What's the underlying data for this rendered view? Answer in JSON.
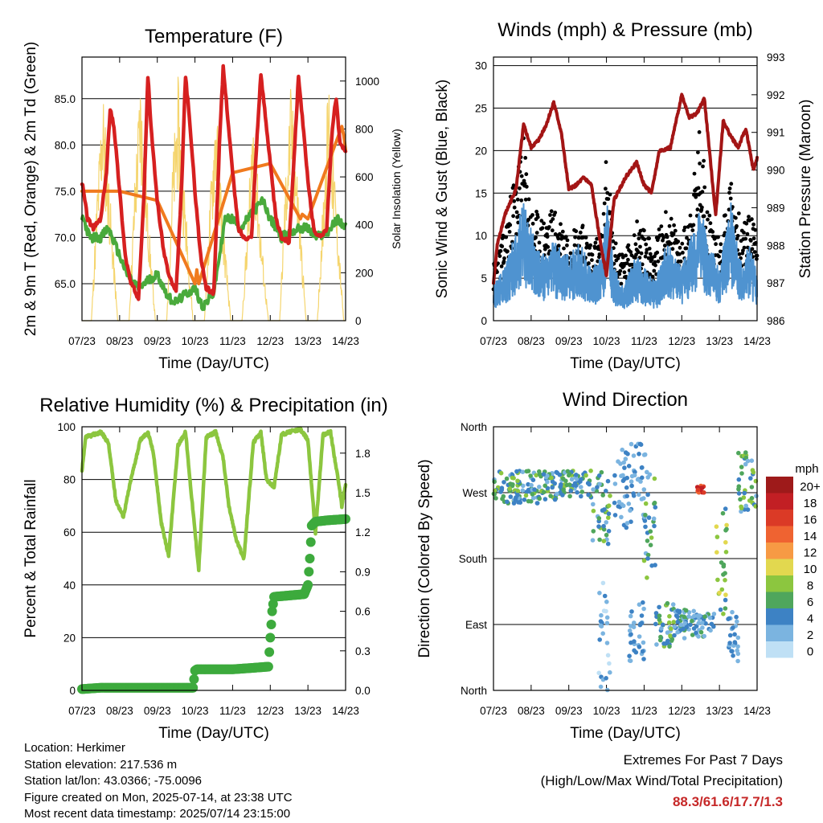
{
  "chart_data": [
    {
      "type": "line",
      "title": "Temperature (F)",
      "xlabel": "Time (Day/UTC)",
      "ylabel": "2m & 9m T (Red, Orange) & 2m Td (Green)",
      "ylabel_right": "Solar Insolation (Yellow)",
      "x_ticks": [
        "07/23",
        "08/23",
        "09/23",
        "10/23",
        "11/23",
        "12/23",
        "13/23",
        "14/23"
      ],
      "ylim": [
        61,
        89.5
      ],
      "y_ticks": [
        "65.0",
        "70.0",
        "75.0",
        "80.0",
        "85.0"
      ],
      "y_tick_values": [
        65,
        70,
        75,
        80,
        85
      ],
      "y2lim": [
        0,
        1100
      ],
      "y2_ticks": [
        "0",
        "200",
        "400",
        "600",
        "800",
        "1000"
      ],
      "y2_tick_values": [
        0,
        200,
        400,
        600,
        800,
        1000
      ],
      "series": [
        {
          "name": "2m T",
          "color": "#d62020",
          "x": [
            0,
            0.15,
            0.3,
            0.5,
            0.65,
            0.75,
            0.85,
            1.0,
            1.15,
            1.3,
            1.5,
            1.65,
            1.75,
            1.85,
            2.0,
            2.15,
            2.3,
            2.5,
            2.65,
            2.75,
            2.85,
            3.0,
            3.15,
            3.3,
            3.5,
            3.65,
            3.75,
            3.85,
            4.0,
            4.15,
            4.3,
            4.5,
            4.65,
            4.75,
            4.85,
            5.0,
            5.15,
            5.3,
            5.5,
            5.65,
            5.75,
            5.85,
            6.0,
            6.15,
            6.3,
            6.5,
            6.65,
            6.75,
            6.85,
            7.0
          ],
          "y": [
            76,
            72,
            71,
            72,
            77,
            84,
            82,
            75,
            68,
            65,
            63.5,
            75,
            87.5,
            81,
            74,
            69,
            66,
            64,
            76,
            87.5,
            83,
            75,
            68,
            64.5,
            64,
            80,
            88.3,
            84,
            77,
            71,
            70,
            70,
            81,
            87.5,
            84,
            78,
            72,
            70,
            69.5,
            80,
            87.5,
            83,
            76,
            71,
            70,
            71,
            82,
            85,
            80,
            79.5
          ]
        },
        {
          "name": "9m T",
          "color": "#f07a1e",
          "x": [
            0,
            1,
            2,
            3,
            3.05,
            3.1,
            4,
            5,
            5.8,
            5.85,
            6,
            6.9,
            6.95,
            7
          ],
          "y": [
            75,
            75,
            74,
            65,
            66.5,
            65,
            77,
            78,
            72,
            72.5,
            72,
            82,
            81,
            79.5
          ]
        },
        {
          "name": "2m Td",
          "color": "#4aaa3c",
          "x": [
            0,
            0.2,
            0.5,
            0.7,
            1.0,
            1.2,
            1.5,
            1.8,
            2.0,
            2.3,
            2.5,
            2.8,
            3.0,
            3.2,
            3.5,
            3.8,
            4.0,
            4.2,
            4.5,
            4.8,
            5.0,
            5.3,
            5.5,
            5.8,
            6.0,
            6.2,
            6.5,
            6.8,
            7.0
          ],
          "y": [
            72.5,
            70,
            70,
            71,
            68,
            66,
            64.5,
            65.5,
            66,
            63.5,
            63,
            64,
            64.5,
            62.5,
            64,
            72,
            72,
            71,
            72.5,
            74,
            72,
            70,
            70.5,
            71,
            71,
            70,
            70.5,
            72,
            71
          ]
        },
        {
          "name": "Solar Insolation",
          "color": "#f5d56e",
          "x": [
            0,
            0.25,
            0.4,
            0.55,
            0.75,
            0.95,
            1.25,
            1.4,
            1.55,
            1.75,
            1.95,
            2.25,
            2.4,
            2.55,
            2.75,
            2.95,
            3.25,
            3.4,
            3.55,
            3.75,
            3.95,
            4.25,
            4.4,
            4.55,
            4.75,
            4.95,
            5.25,
            5.4,
            5.55,
            5.75,
            5.95,
            6.25,
            6.4,
            6.55,
            6.75,
            6.95,
            7.0
          ],
          "y": [
            0,
            0,
            550,
            1000,
            520,
            0,
            0,
            600,
            1050,
            480,
            0,
            0,
            650,
            1020,
            500,
            0,
            0,
            520,
            960,
            430,
            0,
            0,
            450,
            900,
            380,
            0,
            0,
            600,
            1000,
            550,
            0,
            0,
            520,
            1050,
            520,
            0,
            0
          ]
        }
      ]
    },
    {
      "type": "line",
      "title": "Winds (mph) & Pressure (mb)",
      "xlabel": "Time (Day/UTC)",
      "ylabel": "Sonic Wind & Gust (Blue, Black)",
      "ylabel_right": "Station Pressure (Maroon)",
      "x_ticks": [
        "07/23",
        "08/23",
        "09/23",
        "10/23",
        "11/23",
        "12/23",
        "13/23",
        "14/23"
      ],
      "ylim": [
        0,
        31
      ],
      "y_ticks": [
        "0",
        "5",
        "10",
        "15",
        "20",
        "25",
        "30"
      ],
      "y_tick_values": [
        0,
        5,
        10,
        15,
        20,
        25,
        30
      ],
      "y2lim": [
        986,
        993
      ],
      "y2_ticks": [
        "986",
        "987",
        "988",
        "989",
        "990",
        "991",
        "992",
        "993"
      ],
      "y2_tick_values": [
        986,
        987,
        988,
        989,
        990,
        991,
        992,
        993
      ],
      "series": [
        {
          "name": "Sonic Wind",
          "color": "#4f93d0",
          "x": [
            0,
            0.3,
            0.5,
            0.8,
            1.0,
            1.3,
            1.6,
            2.0,
            2.3,
            2.6,
            2.9,
            3.0,
            3.2,
            3.5,
            3.8,
            4.0,
            4.3,
            4.6,
            5.0,
            5.3,
            5.5,
            5.7,
            6.0,
            6.3,
            6.6,
            6.8,
            7.0
          ],
          "y": [
            3,
            4,
            6,
            9,
            7,
            5,
            6,
            5,
            6,
            4,
            5,
            10,
            4,
            3,
            5,
            4,
            3,
            6,
            4,
            7,
            9,
            6,
            4,
            9,
            4,
            6,
            4
          ]
        },
        {
          "name": "Gust",
          "color": "#000000",
          "x": [
            0,
            0.3,
            0.5,
            0.8,
            1.0,
            1.3,
            1.6,
            2.0,
            2.3,
            2.6,
            2.9,
            3.0,
            3.2,
            3.5,
            3.8,
            4.0,
            4.3,
            4.6,
            5.0,
            5.3,
            5.5,
            5.7,
            6.0,
            6.3,
            6.6,
            6.8,
            7.0
          ],
          "y": [
            5,
            8,
            12,
            16,
            10,
            9,
            10,
            8,
            9,
            7,
            8,
            15,
            7,
            6,
            9,
            8,
            7,
            10,
            7,
            12,
            17.7,
            10,
            7,
            13,
            8,
            10,
            8
          ]
        },
        {
          "name": "Station Pressure",
          "color": "#a31515",
          "axis": "right",
          "x": [
            0,
            0.1,
            0.3,
            0.6,
            0.8,
            1.0,
            1.2,
            1.4,
            1.6,
            1.8,
            2.0,
            2.2,
            2.4,
            2.6,
            2.8,
            3.0,
            3.2,
            3.5,
            3.8,
            4.0,
            4.2,
            4.4,
            4.7,
            5.0,
            5.2,
            5.4,
            5.6,
            5.9,
            6.1,
            6.3,
            6.5,
            6.7,
            6.9,
            7.0
          ],
          "y": [
            987,
            988,
            988.8,
            989.5,
            991.2,
            990.6,
            990.8,
            991.2,
            991.8,
            991.0,
            989.5,
            989.6,
            989.8,
            989.6,
            988.3,
            987.2,
            989.2,
            989.8,
            990.2,
            989.6,
            989.4,
            990.5,
            990.6,
            992.0,
            991.4,
            991.5,
            991.9,
            988.8,
            991.3,
            990.9,
            990.6,
            991.1,
            990.0,
            990.3
          ]
        }
      ]
    },
    {
      "type": "line",
      "title": "Relative Humidity (%) & Precipitation (in)",
      "xlabel": "Time (Day/UTC)",
      "ylabel": "Percent & Total Rainfall",
      "x_ticks": [
        "07/23",
        "08/23",
        "09/23",
        "10/23",
        "11/23",
        "12/23",
        "13/23",
        "14/23"
      ],
      "ylim": [
        0,
        100
      ],
      "y_ticks": [
        "0",
        "20",
        "40",
        "60",
        "80",
        "100"
      ],
      "y_tick_values": [
        0,
        20,
        40,
        60,
        80,
        100
      ],
      "y2lim": [
        0,
        2.0
      ],
      "y2_ticks": [
        "0.0",
        "0.3",
        "0.6",
        "0.9",
        "1.2",
        "1.5",
        "1.8"
      ],
      "y2_tick_values": [
        0,
        0.3,
        0.6,
        0.9,
        1.2,
        1.5,
        1.8
      ],
      "series": [
        {
          "name": "Relative Humidity",
          "color": "#8cc63f",
          "x": [
            0,
            0.1,
            0.3,
            0.5,
            0.7,
            0.9,
            1.1,
            1.3,
            1.55,
            1.75,
            1.9,
            2.1,
            2.3,
            2.55,
            2.75,
            2.9,
            3.1,
            3.3,
            3.55,
            3.75,
            3.9,
            4.1,
            4.3,
            4.55,
            4.75,
            4.9,
            5.1,
            5.3,
            5.5,
            5.8,
            6.0,
            6.2,
            6.4,
            6.6,
            6.8,
            6.9,
            7.0
          ],
          "y": [
            83,
            96,
            97,
            98,
            94,
            72,
            66,
            80,
            95,
            98,
            90,
            64,
            51,
            93,
            98,
            75,
            46,
            96,
            98,
            88,
            70,
            57,
            50,
            94,
            98,
            80,
            77,
            97,
            98,
            99,
            95,
            60,
            97,
            98,
            80,
            70,
            78
          ]
        },
        {
          "name": "Total Precipitation",
          "color": "#3daa3d",
          "axis": "right",
          "x": [
            0,
            0.5,
            1.0,
            1.5,
            2.0,
            2.5,
            2.95,
            3.0,
            3.05,
            3.5,
            4.0,
            4.5,
            4.95,
            5.0,
            5.05,
            5.1,
            5.5,
            5.9,
            6.0,
            6.05,
            6.1,
            6.2,
            6.5,
            7.0
          ],
          "y": [
            0.01,
            0.02,
            0.02,
            0.02,
            0.02,
            0.02,
            0.02,
            0.15,
            0.16,
            0.16,
            0.16,
            0.17,
            0.18,
            0.4,
            0.6,
            0.71,
            0.72,
            0.73,
            0.8,
            1.0,
            1.25,
            1.28,
            1.29,
            1.3
          ]
        }
      ]
    },
    {
      "type": "scatter",
      "title": "Wind Direction",
      "xlabel": "Time (Day/UTC)",
      "ylabel": "Direction (Colored By Speed)",
      "x_ticks": [
        "07/23",
        "08/23",
        "09/23",
        "10/23",
        "11/23",
        "12/23",
        "13/23",
        "14/23"
      ],
      "y_ticks": [
        "North",
        "West",
        "South",
        "East",
        "North"
      ],
      "y_tick_values": [
        360,
        270,
        180,
        90,
        0
      ],
      "ylim": [
        0,
        360
      ],
      "colorbar": {
        "title": "mph",
        "labels": [
          "20+",
          "18",
          "16",
          "14",
          "12",
          "10",
          "8",
          "6",
          "4",
          "2",
          "0"
        ],
        "colors": [
          "#9e1a1a",
          "#c21f24",
          "#db3a26",
          "#ef6331",
          "#f79a44",
          "#e2d84f",
          "#8cc63f",
          "#4fa65c",
          "#3d82c4",
          "#7bb4e0",
          "#bfe0f5"
        ]
      },
      "segments": [
        {
          "x": [
            0.0,
            1.2
          ],
          "y": [
            255,
            300
          ],
          "speed": [
            2,
            8
          ]
        },
        {
          "x": [
            1.2,
            2.6
          ],
          "y": [
            260,
            300
          ],
          "speed": [
            2,
            8
          ]
        },
        {
          "x": [
            2.6,
            3.1
          ],
          "y": [
            200,
            300
          ],
          "speed": [
            1,
            8
          ]
        },
        {
          "x": [
            2.8,
            3.1
          ],
          "y": [
            0,
            160
          ],
          "speed": [
            0,
            4
          ]
        },
        {
          "x": [
            3.2,
            4.1
          ],
          "y": [
            220,
            340
          ],
          "speed": [
            1,
            5
          ]
        },
        {
          "x": [
            3.6,
            4.0
          ],
          "y": [
            40,
            120
          ],
          "speed": [
            1,
            4
          ]
        },
        {
          "x": [
            4.0,
            4.3
          ],
          "y": [
            150,
            300
          ],
          "speed": [
            2,
            8
          ]
        },
        {
          "x": [
            4.3,
            4.8
          ],
          "y": [
            60,
            120
          ],
          "speed": [
            1,
            8
          ]
        },
        {
          "x": [
            4.8,
            5.9
          ],
          "y": [
            70,
            110
          ],
          "speed": [
            1,
            6
          ]
        },
        {
          "x": [
            5.4,
            5.6
          ],
          "y": [
            270,
            280
          ],
          "speed": [
            14,
            20
          ]
        },
        {
          "x": [
            5.9,
            6.2
          ],
          "y": [
            100,
            250
          ],
          "speed": [
            4,
            10
          ]
        },
        {
          "x": [
            6.2,
            6.5
          ],
          "y": [
            40,
            110
          ],
          "speed": [
            1,
            5
          ]
        },
        {
          "x": [
            6.5,
            7.0
          ],
          "y": [
            240,
            330
          ],
          "speed": [
            2,
            9
          ]
        }
      ]
    }
  ],
  "info": {
    "location": "Location: Herkimer",
    "elevation": "Station elevation: 217.536 m",
    "latlon": "Station lat/lon: 43.0366; -75.0096",
    "created": "Figure created on Mon, 2025-07-14, at 23:38 UTC",
    "timestamp": "Most recent data timestamp: 2025/07/14 23:15:00"
  },
  "extremes": {
    "heading": "Extremes For Past 7 Days",
    "subheading": "(High/Low/Max Wind/Total Precipitation)",
    "values": "88.3/61.6/17.7/1.3"
  }
}
